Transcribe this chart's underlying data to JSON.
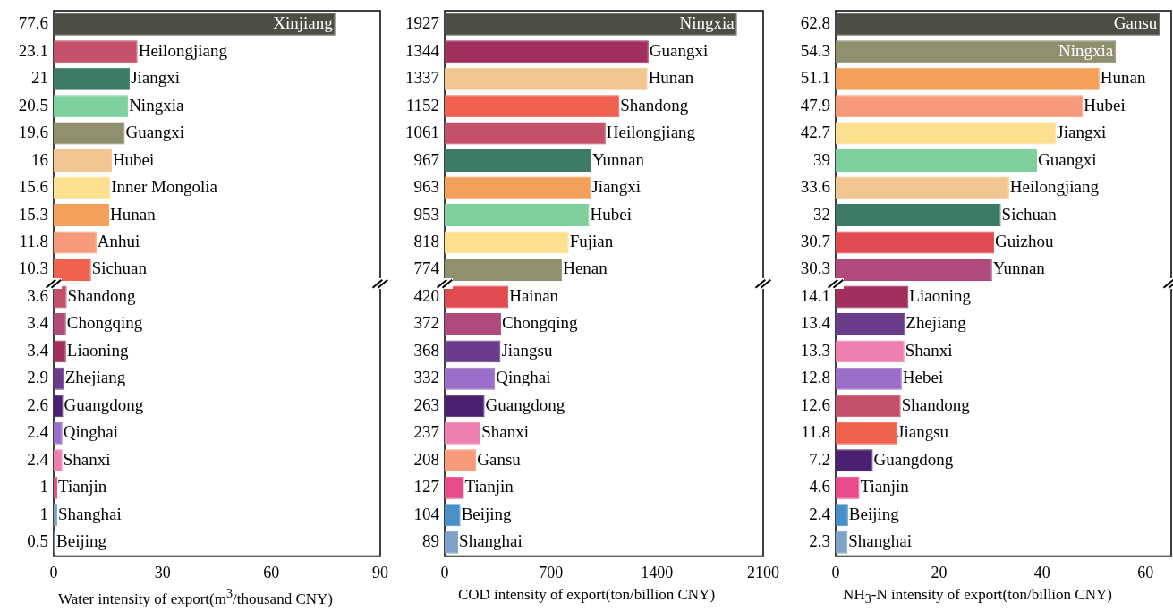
{
  "chart_data": [
    {
      "type": "bar",
      "orientation": "horizontal",
      "data_labels": true,
      "grid": false,
      "legend": false,
      "xlabel": "Water intensity of export(m$^{3}$/thousand CNY)",
      "xlim": [
        0,
        90
      ],
      "xticks": [
        0,
        30,
        60,
        90
      ],
      "categories": [
        "Xinjiang",
        "Heilongjiang",
        "Jiangxi",
        "Ningxia",
        "Guangxi",
        "Hubei",
        "Inner Mongolia",
        "Hunan",
        "Anhui",
        "Sichuan",
        "Shandong",
        "Chongqing",
        "Liaoning",
        "Zhejiang",
        "Guangdong",
        "Qinghai",
        "Shanxi",
        "Tianjin",
        "Shanghai",
        "Beijing"
      ],
      "values": [
        77.6,
        23.1,
        21,
        20.5,
        19.6,
        16,
        15.6,
        15.3,
        11.8,
        10.3,
        3.6,
        3.4,
        3.4,
        2.9,
        2.6,
        2.4,
        2.4,
        1,
        1,
        0.5
      ],
      "colors": [
        "#4d4d45",
        "#c4506a",
        "#3e7a68",
        "#7ed19c",
        "#8f8f6e",
        "#f2c690",
        "#fde08f",
        "#f3a05b",
        "#f79a7a",
        "#f0614f",
        "#c4506a",
        "#b04a7d",
        "#a1305e",
        "#6a3c8a",
        "#4a2070",
        "#9b6fc9",
        "#ee7fb0",
        "#e84b8a",
        "#7fa3c8",
        "#4a90c8"
      ]
    },
    {
      "type": "bar",
      "orientation": "horizontal",
      "data_labels": true,
      "grid": false,
      "legend": false,
      "xlabel": "COD intensity of export(ton/billion CNY)",
      "xlim": [
        0,
        2100
      ],
      "xticks": [
        0,
        700,
        1400,
        2100
      ],
      "categories": [
        "Ningxia",
        "Guangxi",
        "Hunan",
        "Shandong",
        "Heilongjiang",
        "Yunnan",
        "Jiangxi",
        "Hubei",
        "Fujian",
        "Henan",
        "Hainan",
        "Chongqing",
        "Jiangsu",
        "Qinghai",
        "Guangdong",
        "Shanxi",
        "Gansu",
        "Tianjin",
        "Beijing",
        "Shanghai"
      ],
      "values": [
        1927,
        1344,
        1337,
        1152,
        1061,
        967,
        963,
        953,
        818,
        774,
        420,
        372,
        368,
        332,
        263,
        237,
        208,
        127,
        104,
        89
      ],
      "colors": [
        "#4d4d45",
        "#a1305e",
        "#f2c690",
        "#f0614f",
        "#c4506a",
        "#3e7a68",
        "#f3a05b",
        "#7ed19c",
        "#fde08f",
        "#8f8f6e",
        "#e04a50",
        "#b04a7d",
        "#6a3c8a",
        "#9b6fc9",
        "#4a2070",
        "#ee7fb0",
        "#f79a7a",
        "#e84b8a",
        "#4a90c8",
        "#7fa3c8"
      ]
    },
    {
      "type": "bar",
      "orientation": "horizontal",
      "data_labels": true,
      "grid": false,
      "legend": false,
      "xlabel": "NH$_{3}$-N intensity of export(ton/billion CNY)",
      "xlim": [
        0,
        65
      ],
      "xticks": [
        0,
        20,
        40,
        60
      ],
      "categories": [
        "Gansu",
        "Ningxia",
        "Hunan",
        "Hubei",
        "Jiangxi",
        "Guangxi",
        "Heilongjiang",
        "Sichuan",
        "Guizhou",
        "Yunnan",
        "Liaoning",
        "Zhejiang",
        "Shanxi",
        "Hebei",
        "Shandong",
        "Jiangsu",
        "Guangdong",
        "Tianjin",
        "Beijing",
        "Shanghai"
      ],
      "values": [
        62.8,
        54.3,
        51.1,
        47.9,
        42.7,
        39,
        33.6,
        32,
        30.7,
        30.3,
        14.1,
        13.4,
        13.3,
        12.8,
        12.6,
        11.8,
        7.2,
        4.6,
        2.4,
        2.3
      ],
      "colors": [
        "#4d4d45",
        "#8f8f6e",
        "#f3a05b",
        "#f79a7a",
        "#fde08f",
        "#7ed19c",
        "#f2c690",
        "#3e7a68",
        "#e04a50",
        "#b04a7d",
        "#a1305e",
        "#6a3c8a",
        "#ee7fb0",
        "#9b6fc9",
        "#c4506a",
        "#f0614f",
        "#4a2070",
        "#e84b8a",
        "#4a90c8",
        "#7fa3c8"
      ]
    }
  ]
}
